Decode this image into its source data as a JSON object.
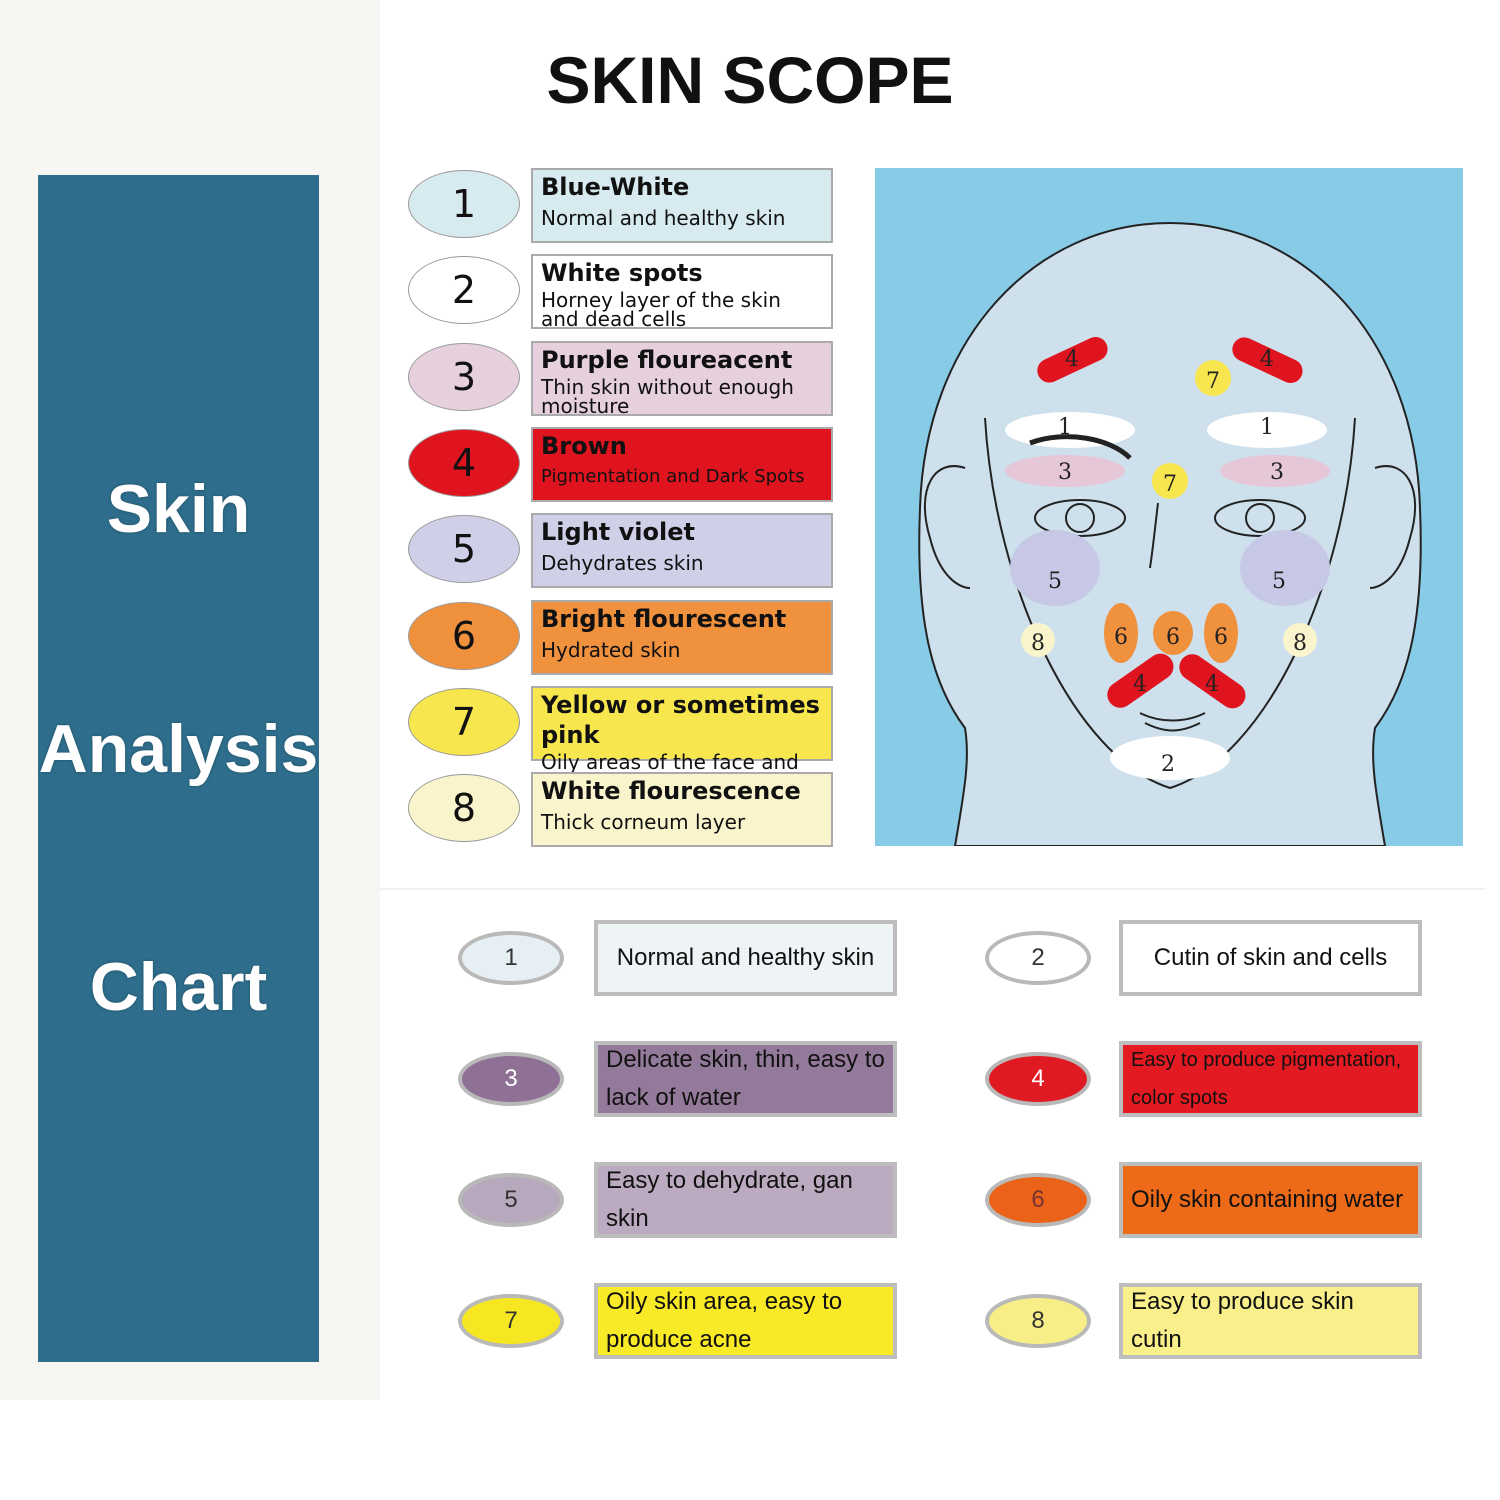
{
  "title": "SKIN SCOPE",
  "side_label": [
    "Skin",
    "Analysis",
    "Chart"
  ],
  "colors": {
    "band": "#2e6e8c",
    "face_bg": "#87cbe6"
  },
  "legend": [
    {
      "num": "1",
      "heading": "Blue-White",
      "desc": "Normal and healthy skin",
      "color": "#d6eaf0"
    },
    {
      "num": "2",
      "heading": "White spots",
      "desc": "Horney layer of the skin and dead cells",
      "color": "#ffffff"
    },
    {
      "num": "3",
      "heading": "Purple floureacent",
      "desc": "Thin skin without enough moisture",
      "color": "#e6d0de"
    },
    {
      "num": "4",
      "heading": "Brown",
      "desc": "Pigmentation and Dark Spots",
      "color": "#e0141e"
    },
    {
      "num": "5",
      "heading": "Light violet",
      "desc": "Dehydrates skin",
      "color": "#cfd0e8"
    },
    {
      "num": "6",
      "heading": "Bright flourescent",
      "desc": "Hydrated skin",
      "color": "#f0913e"
    },
    {
      "num": "7",
      "heading": "Yellow or sometimes pink",
      "desc": "Oily areas of the face and comedones",
      "color": "#f7e64e"
    },
    {
      "num": "8",
      "heading": "White flourescence",
      "desc": "Thick corneum layer",
      "color": "#faf4cc"
    }
  ],
  "face_markers": [
    "4",
    "4",
    "7",
    "1",
    "1",
    "7",
    "3",
    "3",
    "5",
    "5",
    "8",
    "6",
    "6",
    "6",
    "8",
    "4",
    "4",
    "2"
  ],
  "bottom": [
    {
      "num": "1",
      "text": "Normal and healthy skin",
      "oval": "#e6f0f4",
      "box": "#eef4f6",
      "numcolor": "#333"
    },
    {
      "num": "2",
      "text": "Cutin of skin and cells",
      "oval": "#ffffff",
      "box": "#ffffff",
      "numcolor": "#333"
    },
    {
      "num": "3",
      "text": "Delicate skin, thin, easy to lack of water",
      "oval": "#8f7196",
      "box": "#947a9a",
      "numcolor": "#fff"
    },
    {
      "num": "4",
      "text": "Easy to produce pigmentation, color spots",
      "oval": "#e01a22",
      "box": "#e41a22",
      "numcolor": "#fff"
    },
    {
      "num": "5",
      "text": "Easy to dehydrate, gan skin",
      "oval": "#b8a8bd",
      "box": "#bcaac0",
      "numcolor": "#333"
    },
    {
      "num": "6",
      "text": "Oily skin containing water",
      "oval": "#ea6318",
      "box": "#ec6a18",
      "numcolor": "#733"
    },
    {
      "num": "7",
      "text": "Oily skin area, easy to produce acne",
      "oval": "#f7e622",
      "box": "#f9ea28",
      "numcolor": "#333"
    },
    {
      "num": "8",
      "text": "Easy to produce skin cutin",
      "oval": "#f8ee88",
      "box": "#f9f08c",
      "numcolor": "#333"
    }
  ]
}
